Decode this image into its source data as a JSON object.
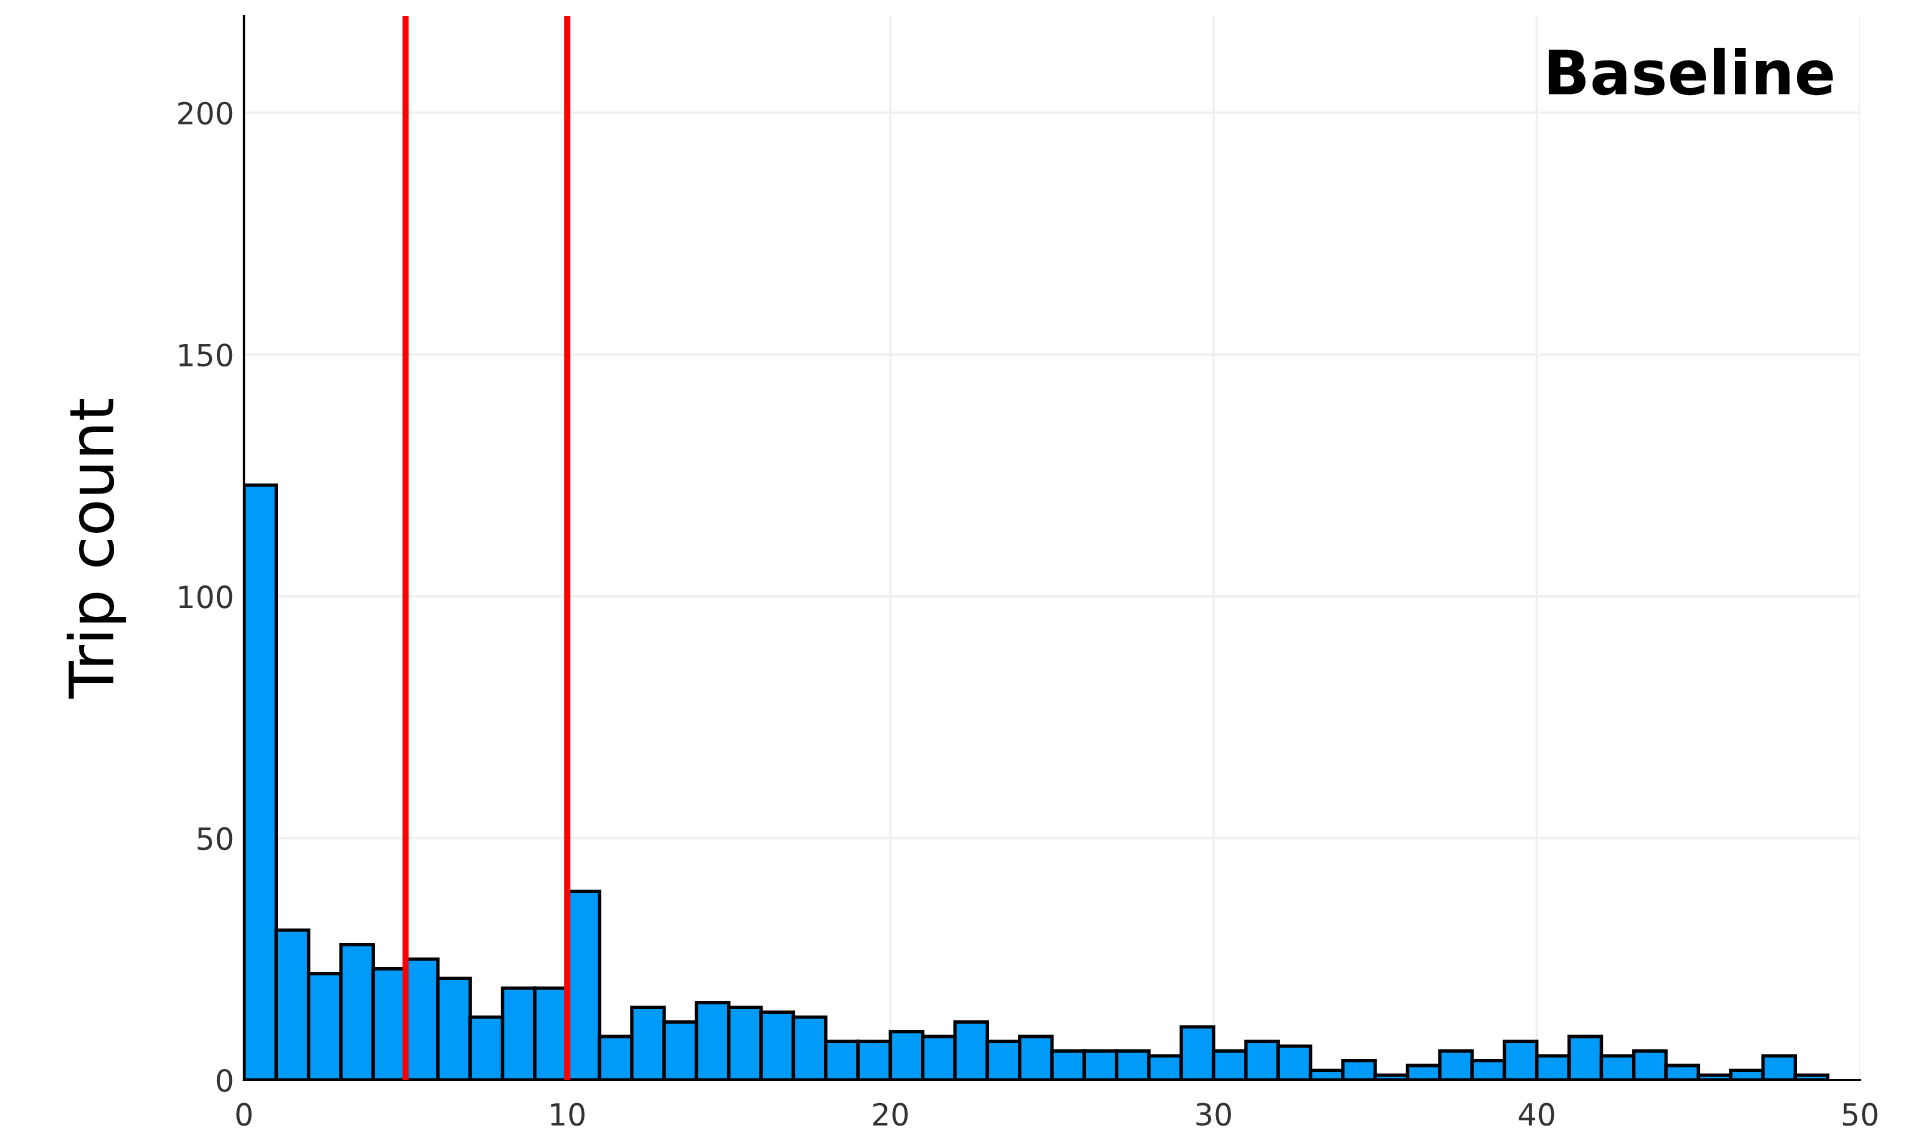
{
  "chart_data": {
    "type": "histogram",
    "title": "Baseline",
    "ylabel": "Trip count",
    "bins": [
      0,
      1,
      2,
      3,
      4,
      5,
      6,
      7,
      8,
      9,
      10,
      11,
      12,
      13,
      14,
      15,
      16,
      17,
      18,
      19,
      20,
      21,
      22,
      23,
      24,
      25,
      26,
      27,
      28,
      29,
      30,
      31,
      32,
      33,
      34,
      35,
      36,
      37,
      38,
      39,
      40,
      41,
      42,
      43,
      44,
      45,
      46,
      47,
      48,
      49
    ],
    "values": [
      123,
      31,
      22,
      28,
      23,
      25,
      21,
      13,
      19,
      19,
      39,
      9,
      15,
      12,
      16,
      15,
      14,
      13,
      8,
      8,
      10,
      9,
      12,
      8,
      9,
      6,
      6,
      6,
      5,
      11,
      6,
      8,
      7,
      2,
      4,
      1,
      3,
      6,
      4,
      8,
      5,
      9,
      5,
      6,
      3,
      1,
      2,
      5,
      1
    ],
    "color": "#009af9",
    "xlim": [
      0,
      50
    ],
    "ylim": [
      0,
      220
    ],
    "xticks": [
      0,
      10,
      20,
      30,
      40,
      50
    ],
    "yticks": [
      0,
      50,
      100,
      150,
      200
    ],
    "grid": true,
    "ref_lines": [
      {
        "axis": "x",
        "value": 5,
        "color": "#ff0000"
      },
      {
        "axis": "x",
        "value": 10,
        "color": "#ff0000"
      }
    ]
  }
}
